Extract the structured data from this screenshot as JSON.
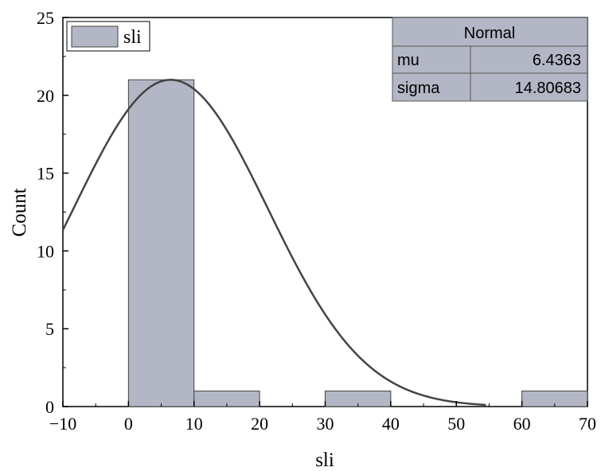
{
  "chart_data": {
    "type": "bar",
    "title": "",
    "xlabel": "sli",
    "ylabel": "Count",
    "xlim": [
      -10,
      70
    ],
    "ylim": [
      0,
      25
    ],
    "x_ticks": [
      "−10",
      "0",
      "10",
      "20",
      "30",
      "40",
      "50",
      "60",
      "70"
    ],
    "x_tick_values": [
      -10,
      0,
      10,
      20,
      30,
      40,
      50,
      60,
      70
    ],
    "y_ticks": [
      "0",
      "5",
      "10",
      "15",
      "20",
      "25"
    ],
    "y_tick_values": [
      0,
      5,
      10,
      15,
      20,
      25
    ],
    "bins": [
      {
        "start": 0,
        "end": 10,
        "count": 21
      },
      {
        "start": 10,
        "end": 20,
        "count": 1
      },
      {
        "start": 30,
        "end": 40,
        "count": 1
      },
      {
        "start": 60,
        "end": 70,
        "count": 1
      }
    ],
    "series": [
      {
        "name": "sli",
        "type": "histogram"
      },
      {
        "type": "normal-curve",
        "mu": 6.4363,
        "sigma": 14.80683,
        "peak": 21,
        "x_range": [
          -10,
          54.5
        ]
      }
    ],
    "legend": {
      "label": "sli",
      "position": "top-left"
    },
    "stats_table": {
      "title": "Normal",
      "rows": [
        {
          "label": "mu",
          "value": "6.4363"
        },
        {
          "label": "sigma",
          "value": "14.80683"
        }
      ],
      "position": "top-right"
    },
    "colors": {
      "bar_fill": "#b3b6c4",
      "bar_stroke": "#444444",
      "curve": "#444444",
      "table_fill": "#b3b6c4"
    },
    "grid": false
  }
}
